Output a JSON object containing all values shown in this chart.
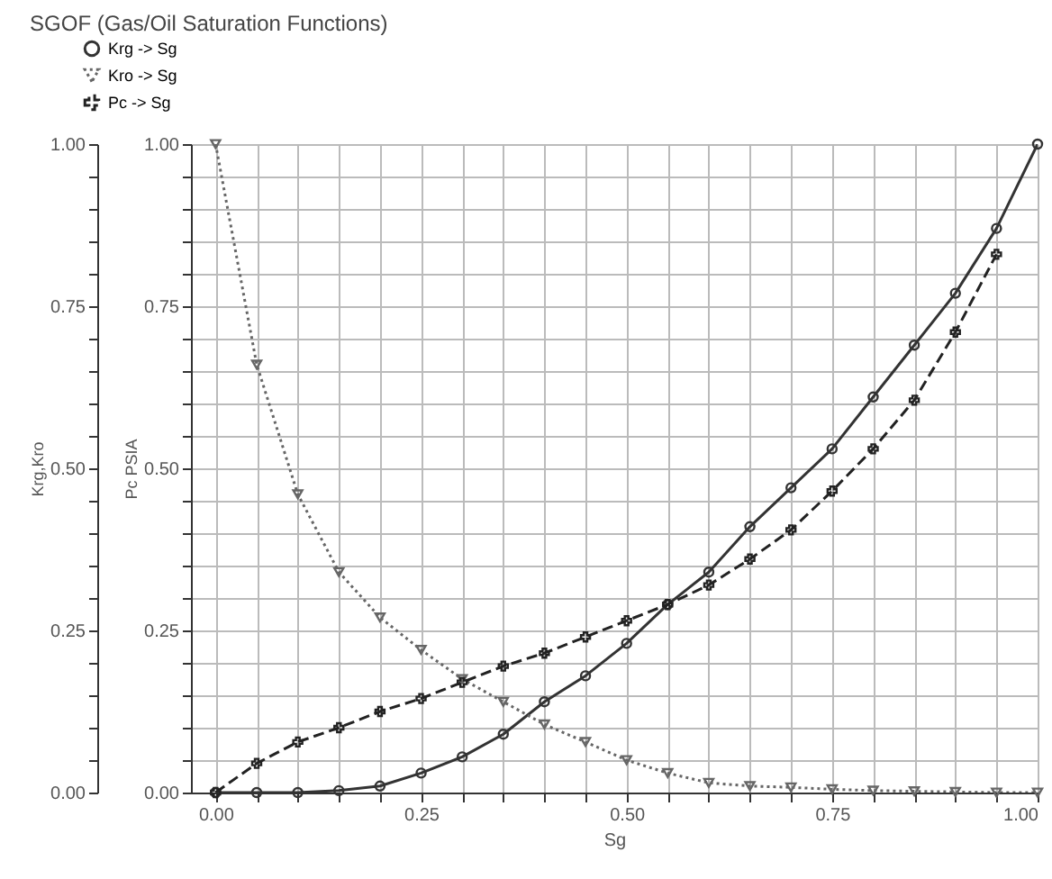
{
  "chart_data": {
    "type": "line",
    "title": "SGOF (Gas/Oil Saturation Functions)",
    "xlabel": "Sg",
    "ylabel": "Krg,Kro",
    "y2label": "Pc    PSIA",
    "x": [
      0,
      0.05,
      0.1,
      0.15,
      0.2,
      0.25,
      0.3,
      0.35,
      0.4,
      0.45,
      0.5,
      0.55,
      0.6,
      0.65,
      0.7,
      0.75,
      0.8,
      0.85,
      0.9,
      0.95,
      1.0
    ],
    "series": [
      {
        "name": "Krg -> Sg",
        "color": "#333333",
        "marker": "circle",
        "line_style": "solid",
        "values": [
          0,
          0,
          0,
          0.003,
          0.01,
          0.03,
          0.055,
          0.09,
          0.14,
          0.18,
          0.23,
          0.29,
          0.34,
          0.41,
          0.47,
          0.53,
          0.61,
          0.69,
          0.77,
          0.87,
          1.0
        ]
      },
      {
        "name": "Kro -> Sg",
        "color": "#666666",
        "marker": "triangle",
        "line_style": "dotted",
        "values": [
          1.0,
          0.66,
          0.46,
          0.34,
          0.27,
          0.22,
          0.175,
          0.14,
          0.105,
          0.078,
          0.05,
          0.03,
          0.015,
          0.01,
          0.008,
          0.005,
          0.003,
          0.002,
          0.001,
          0,
          0
        ]
      },
      {
        "name": "Pc -> Sg",
        "color": "#222222",
        "marker": "cross",
        "line_style": "dashed",
        "axis": "y2",
        "values": [
          0,
          0.045,
          0.078,
          0.1,
          0.125,
          0.145,
          0.17,
          0.195,
          0.215,
          0.24,
          0.265,
          0.29,
          0.32,
          0.36,
          0.405,
          0.465,
          0.53,
          0.605,
          0.71,
          0.83,
          null
        ]
      }
    ],
    "xlim": [
      -0.03,
      1.0
    ],
    "ylim": [
      0,
      1.0
    ],
    "y2lim": [
      0,
      1.0
    ],
    "xticks": [
      {
        "value": 0,
        "label": "0.00"
      },
      {
        "value": 0.05,
        "label": null
      },
      {
        "value": 0.1,
        "label": null
      },
      {
        "value": 0.15,
        "label": null
      },
      {
        "value": 0.2,
        "label": null
      },
      {
        "value": 0.25,
        "label": "0.25"
      },
      {
        "value": 0.3,
        "label": null
      },
      {
        "value": 0.35,
        "label": null
      },
      {
        "value": 0.4,
        "label": null
      },
      {
        "value": 0.45,
        "label": null
      },
      {
        "value": 0.5,
        "label": "0.50"
      },
      {
        "value": 0.55,
        "label": null
      },
      {
        "value": 0.6,
        "label": null
      },
      {
        "value": 0.65,
        "label": null
      },
      {
        "value": 0.7,
        "label": null
      },
      {
        "value": 0.75,
        "label": "0.75"
      },
      {
        "value": 0.8,
        "label": null
      },
      {
        "value": 0.85,
        "label": null
      },
      {
        "value": 0.9,
        "label": null
      },
      {
        "value": 0.95,
        "label": null
      },
      {
        "value": 1.0,
        "label": "1.00"
      }
    ],
    "yticks": [
      {
        "value": 0,
        "label": "0.00"
      },
      {
        "value": 0.05,
        "label": null
      },
      {
        "value": 0.1,
        "label": null
      },
      {
        "value": 0.15,
        "label": null
      },
      {
        "value": 0.2,
        "label": null
      },
      {
        "value": 0.25,
        "label": "0.25"
      },
      {
        "value": 0.3,
        "label": null
      },
      {
        "value": 0.35,
        "label": null
      },
      {
        "value": 0.4,
        "label": null
      },
      {
        "value": 0.45,
        "label": null
      },
      {
        "value": 0.5,
        "label": "0.50"
      },
      {
        "value": 0.55,
        "label": null
      },
      {
        "value": 0.6,
        "label": null
      },
      {
        "value": 0.65,
        "label": null
      },
      {
        "value": 0.7,
        "label": null
      },
      {
        "value": 0.75,
        "label": "0.75"
      },
      {
        "value": 0.8,
        "label": null
      },
      {
        "value": 0.85,
        "label": null
      },
      {
        "value": 0.9,
        "label": null
      },
      {
        "value": 0.95,
        "label": null
      },
      {
        "value": 1.0,
        "label": "1.00"
      }
    ],
    "y2ticks": [
      {
        "value": 0,
        "label": "0.00"
      },
      {
        "value": 0.05,
        "label": null
      },
      {
        "value": 0.1,
        "label": null
      },
      {
        "value": 0.15,
        "label": null
      },
      {
        "value": 0.2,
        "label": null
      },
      {
        "value": 0.25,
        "label": "0.25"
      },
      {
        "value": 0.3,
        "label": null
      },
      {
        "value": 0.35,
        "label": null
      },
      {
        "value": 0.4,
        "label": null
      },
      {
        "value": 0.45,
        "label": null
      },
      {
        "value": 0.5,
        "label": "0.50"
      },
      {
        "value": 0.55,
        "label": null
      },
      {
        "value": 0.6,
        "label": null
      },
      {
        "value": 0.65,
        "label": null
      },
      {
        "value": 0.7,
        "label": null
      },
      {
        "value": 0.75,
        "label": "0.75"
      },
      {
        "value": 0.8,
        "label": null
      },
      {
        "value": 0.85,
        "label": null
      },
      {
        "value": 0.9,
        "label": null
      },
      {
        "value": 0.95,
        "label": null
      },
      {
        "value": 1.0,
        "label": "1.00"
      }
    ],
    "grid": true,
    "legend": "top left"
  }
}
